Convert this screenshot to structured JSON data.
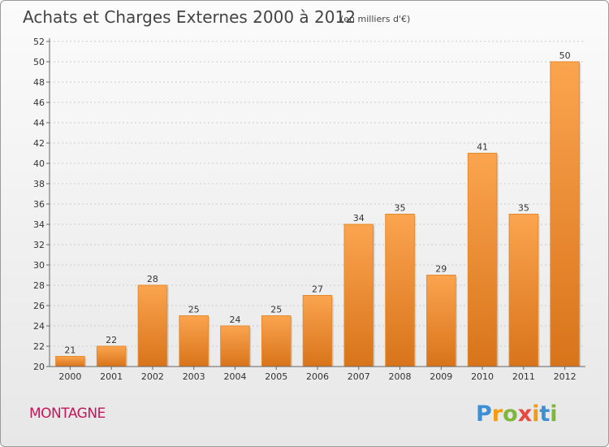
{
  "chart_data": {
    "type": "bar",
    "title": "Achats et Charges Externes 2000 à 2012",
    "subtitle": "(en milliers d'€)",
    "categories": [
      "2000",
      "2001",
      "2002",
      "2003",
      "2004",
      "2005",
      "2006",
      "2007",
      "2008",
      "2009",
      "2010",
      "2011",
      "2012"
    ],
    "values": [
      21,
      22,
      28,
      25,
      24,
      25,
      27,
      34,
      35,
      29,
      41,
      35,
      50
    ],
    "ylim": [
      20,
      52
    ],
    "yticks": [
      20,
      22,
      24,
      26,
      28,
      30,
      32,
      34,
      36,
      38,
      40,
      42,
      44,
      46,
      48,
      50,
      52
    ],
    "xlabel": "",
    "ylabel": "",
    "grid": true,
    "bar_color": "#f0902e",
    "data_labels": true
  },
  "footer": {
    "commune": "MONTAGNE",
    "commune_color": "#c2185b",
    "logo_letters": [
      "P",
      "r",
      "o",
      "x",
      "i",
      "t",
      "i"
    ],
    "logo_colors": [
      "#3d8fd6",
      "#f39c12",
      "#7fb73a",
      "#e8483f",
      "#f39c12",
      "#3d8fd6",
      "#7fb73a"
    ]
  }
}
